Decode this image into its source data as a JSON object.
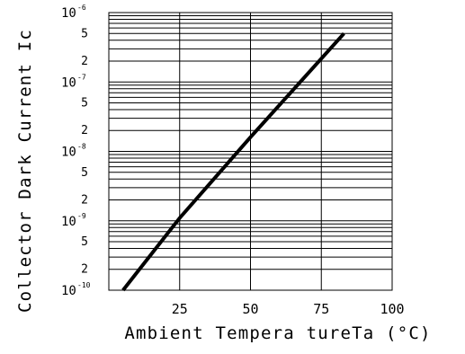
{
  "chart_data": {
    "type": "line",
    "xlabel": "Ambient Tempera tureTa (°C)",
    "ylabel": "Collector Dark Current Ic",
    "x_scale": "linear",
    "y_scale": "log",
    "xlim": [
      0,
      100
    ],
    "ylim": [
      1e-10,
      1e-06
    ],
    "grid": true,
    "x_ticks": [
      {
        "value": 25,
        "label": "25"
      },
      {
        "value": 50,
        "label": "50"
      },
      {
        "value": 75,
        "label": "75"
      },
      {
        "value": 100,
        "label": "100"
      }
    ],
    "y_major_ticks": [
      {
        "value": 1e-06,
        "base": "10",
        "exp": "-6"
      },
      {
        "value": 1e-07,
        "base": "10",
        "exp": "-7"
      },
      {
        "value": 1e-08,
        "base": "10",
        "exp": "-8"
      },
      {
        "value": 1e-09,
        "base": "10",
        "exp": "-9"
      },
      {
        "value": 1e-10,
        "base": "10",
        "exp": "-10"
      }
    ],
    "y_minor_labels": [
      {
        "value": 5e-07,
        "label": "5"
      },
      {
        "value": 2e-07,
        "label": "2"
      },
      {
        "value": 5e-08,
        "label": "5"
      },
      {
        "value": 2e-08,
        "label": "2"
      },
      {
        "value": 5e-09,
        "label": "5"
      },
      {
        "value": 2e-09,
        "label": "2"
      },
      {
        "value": 5e-10,
        "label": "5"
      },
      {
        "value": 2e-10,
        "label": "2"
      }
    ],
    "series": [
      {
        "x": [
          5,
          25,
          50,
          83
        ],
        "y": [
          1e-10,
          1.1e-09,
          1.6e-08,
          5e-07
        ]
      }
    ]
  }
}
